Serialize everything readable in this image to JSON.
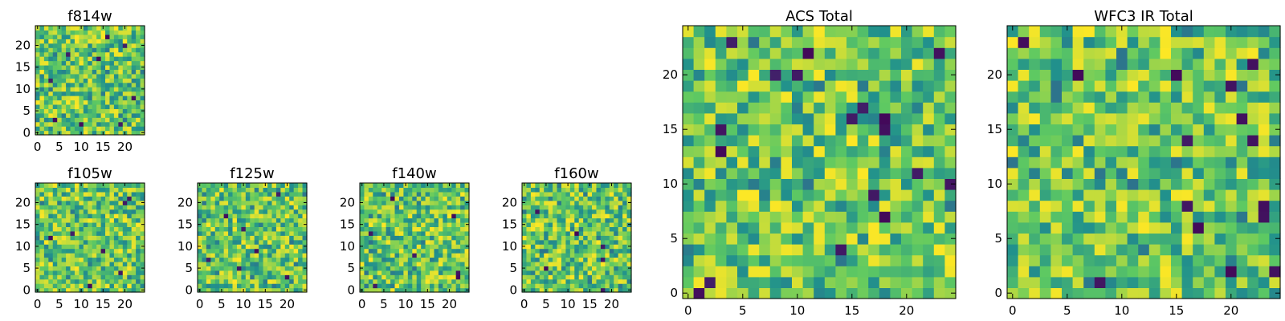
{
  "chart_data": [
    {
      "type": "heatmap",
      "title": "f814w",
      "grid_size": 25,
      "xticks": [
        "0",
        "5",
        "10",
        "15",
        "20"
      ],
      "yticks": [
        "0",
        "5",
        "10",
        "15",
        "20"
      ],
      "xlim": [
        -0.5,
        24.5
      ],
      "ylim": [
        -0.5,
        24.5
      ],
      "colormap": "viridis",
      "seed": 814,
      "dark_pixels": [
        [
          4,
          3
        ],
        [
          10,
          2
        ],
        [
          19,
          2
        ],
        [
          20,
          20
        ],
        [
          7,
          18
        ],
        [
          14,
          17
        ],
        [
          22,
          8
        ],
        [
          16,
          22
        ],
        [
          3,
          12
        ]
      ]
    },
    {
      "type": "heatmap",
      "title": "f105w",
      "grid_size": 25,
      "xticks": [
        "0",
        "5",
        "10",
        "15",
        "20"
      ],
      "yticks": [
        "0",
        "5",
        "10",
        "15",
        "20"
      ],
      "xlim": [
        -0.5,
        24.5
      ],
      "ylim": [
        -0.5,
        24.5
      ],
      "colormap": "viridis",
      "seed": 105,
      "dark_pixels": [
        [
          19,
          4
        ],
        [
          12,
          1
        ],
        [
          21,
          21
        ],
        [
          20,
          20
        ],
        [
          3,
          12
        ],
        [
          8,
          13
        ],
        [
          15,
          9
        ]
      ]
    },
    {
      "type": "heatmap",
      "title": "f125w",
      "grid_size": 25,
      "xticks": [
        "0",
        "5",
        "10",
        "15",
        "20"
      ],
      "yticks": [
        "0",
        "5",
        "10",
        "15",
        "20"
      ],
      "xlim": [
        -0.5,
        24.5
      ],
      "ylim": [
        -0.5,
        24.5
      ],
      "colormap": "viridis",
      "seed": 125,
      "dark_pixels": [
        [
          20,
          3
        ],
        [
          2,
          7
        ],
        [
          10,
          14
        ],
        [
          13,
          9
        ],
        [
          18,
          22
        ],
        [
          6,
          17
        ],
        [
          9,
          5
        ]
      ]
    },
    {
      "type": "heatmap",
      "title": "f140w",
      "grid_size": 25,
      "xticks": [
        "0",
        "5",
        "10",
        "15",
        "20"
      ],
      "yticks": [
        "0",
        "5",
        "10",
        "15",
        "20"
      ],
      "xlim": [
        -0.5,
        24.5
      ],
      "ylim": [
        -0.5,
        24.5
      ],
      "colormap": "viridis",
      "seed": 140,
      "dark_pixels": [
        [
          22,
          4
        ],
        [
          22,
          3
        ],
        [
          7,
          21
        ],
        [
          21,
          17
        ],
        [
          2,
          13
        ],
        [
          12,
          8
        ],
        [
          3,
          1
        ]
      ]
    },
    {
      "type": "heatmap",
      "title": "f160w",
      "grid_size": 25,
      "xticks": [
        "0",
        "5",
        "10",
        "15",
        "20"
      ],
      "yticks": [
        "0",
        "5",
        "10",
        "15",
        "20"
      ],
      "xlim": [
        -0.5,
        24.5
      ],
      "ylim": [
        -0.5,
        24.5
      ],
      "colormap": "viridis",
      "seed": 160,
      "dark_pixels": [
        [
          18,
          0
        ],
        [
          18,
          10
        ],
        [
          18,
          7
        ],
        [
          3,
          18
        ],
        [
          12,
          13
        ],
        [
          5,
          5
        ]
      ]
    },
    {
      "type": "heatmap",
      "title": "ACS Total",
      "grid_size": 25,
      "xticks": [
        "0",
        "5",
        "10",
        "15",
        "20"
      ],
      "yticks": [
        "0",
        "5",
        "10",
        "15",
        "20"
      ],
      "xlim": [
        -0.5,
        24.5
      ],
      "ylim": [
        -0.5,
        24.5
      ],
      "colormap": "viridis",
      "seed": 9001,
      "dark_pixels": [
        [
          3,
          15
        ],
        [
          3,
          13
        ],
        [
          8,
          20
        ],
        [
          10,
          20
        ],
        [
          16,
          17
        ],
        [
          18,
          16
        ],
        [
          18,
          15
        ],
        [
          21,
          11
        ],
        [
          24,
          10
        ],
        [
          14,
          4
        ],
        [
          18,
          7
        ],
        [
          17,
          9
        ],
        [
          1,
          0
        ],
        [
          2,
          1
        ],
        [
          15,
          16
        ],
        [
          4,
          23
        ],
        [
          11,
          22
        ],
        [
          23,
          22
        ]
      ]
    },
    {
      "type": "heatmap",
      "title": "WFC3 IR Total",
      "grid_size": 25,
      "xticks": [
        "0",
        "5",
        "10",
        "15",
        "20"
      ],
      "yticks": [
        "0",
        "5",
        "10",
        "15",
        "20"
      ],
      "xlim": [
        -0.5,
        24.5
      ],
      "ylim": [
        -0.5,
        24.5
      ],
      "colormap": "viridis",
      "seed": 9002,
      "dark_pixels": [
        [
          6,
          20
        ],
        [
          8,
          1
        ],
        [
          20,
          19
        ],
        [
          16,
          8
        ],
        [
          17,
          6
        ],
        [
          16,
          14
        ],
        [
          22,
          14
        ],
        [
          24,
          2
        ],
        [
          21,
          16
        ],
        [
          20,
          2
        ],
        [
          1,
          23
        ],
        [
          23,
          7
        ],
        [
          23,
          8
        ],
        [
          15,
          20
        ],
        [
          22,
          21
        ]
      ]
    }
  ],
  "colors": {
    "viridis_stops": [
      "#440154",
      "#3b528b",
      "#21918c",
      "#5ec962",
      "#fde725"
    ]
  }
}
